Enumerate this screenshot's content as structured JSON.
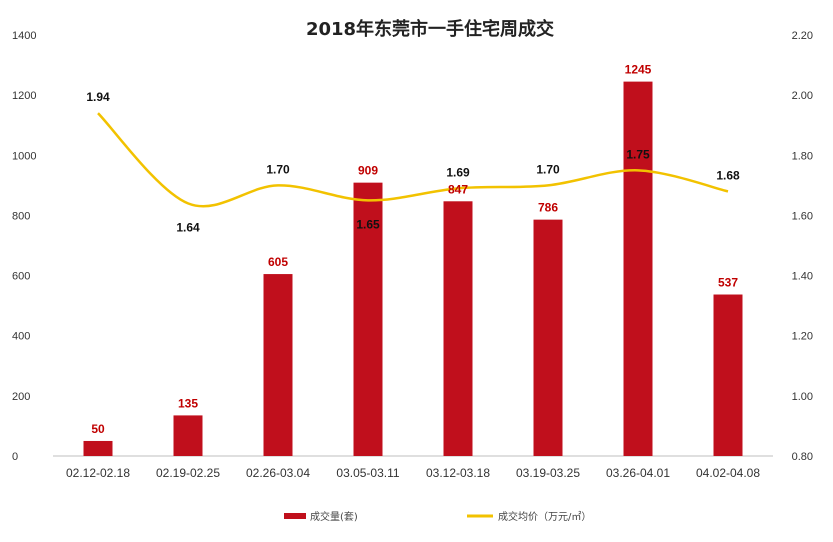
{
  "chart_data": {
    "type": "bar+line",
    "title": "2018年东莞市一手住宅周成交",
    "categories": [
      "02.12-02.18",
      "02.19-02.25",
      "02.26-03.04",
      "03.05-03.11",
      "03.12-03.18",
      "03.19-03.25",
      "03.26-04.01",
      "04.02-04.08"
    ],
    "series": [
      {
        "name": "成交量(套)",
        "type": "bar",
        "axis": "left",
        "color": "#c00f1c",
        "values": [
          50,
          135,
          605,
          909,
          847,
          786,
          1245,
          537
        ]
      },
      {
        "name": "成交均价（万元/㎡）",
        "type": "line",
        "axis": "right",
        "color": "#f2c200",
        "values": [
          1.94,
          1.64,
          1.7,
          1.65,
          1.69,
          1.7,
          1.75,
          1.68
        ]
      }
    ],
    "yleft": {
      "min": 0,
      "max": 1400,
      "ticks": [
        0,
        200,
        400,
        600,
        800,
        1000,
        1200,
        1400
      ]
    },
    "yright": {
      "min": 0.8,
      "max": 2.2,
      "ticks": [
        "0.80",
        "1.00",
        "1.20",
        "1.40",
        "1.60",
        "1.80",
        "2.00",
        "2.20"
      ]
    },
    "bar_labels": [
      "50",
      "135",
      "605",
      "909",
      "847",
      "786",
      "1245",
      "537"
    ],
    "line_labels": [
      "1.94",
      "1.64",
      "1.70",
      "1.65",
      "1.69",
      "1.70",
      "1.75",
      "1.68"
    ],
    "legend_position": "bottom",
    "grid": false
  }
}
